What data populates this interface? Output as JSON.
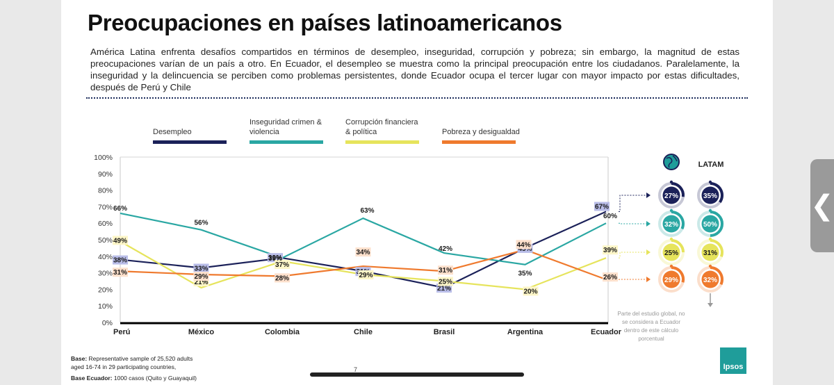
{
  "title": "Preocupaciones en países latinoamericanos",
  "description": "América Latina enfrenta desafíos compartidos en términos de desempleo, inseguridad, corrupción y pobreza; sin embargo, la magnitud de estas preocupaciones varían de un país a otro. En Ecuador, el desempleo se muestra como la principal preocupación entre los ciudadanos. Paralelamente, la inseguridad y la delincuencia se perciben como problemas persistentes, donde Ecuador ocupa el tercer lugar con mayor impacto por estas dificultades, después de Perú y Chile",
  "chart_data": {
    "type": "line",
    "categories": [
      "Perú",
      "México",
      "Colombia",
      "Chile",
      "Brasil",
      "Argentina",
      "Ecuador"
    ],
    "ylim": [
      0,
      100
    ],
    "yticks": [
      "0%",
      "10%",
      "20%",
      "30%",
      "40%",
      "50%",
      "60%",
      "70%",
      "80%",
      "90%",
      "100%"
    ],
    "grid": false,
    "legend_position": "top",
    "series": [
      {
        "name": "Desempleo",
        "color": "#1b2159",
        "label_bg": "#b9bde8",
        "values": [
          38,
          33,
          39,
          31,
          21,
          45,
          67
        ],
        "labels": [
          "38%",
          "33%",
          "39%",
          "31%",
          "21%",
          "45%",
          "67%"
        ]
      },
      {
        "name": "Inseguridad crimen & violencia",
        "color": "#2aa7a3",
        "label_bg": "",
        "values": [
          66,
          56,
          39,
          63,
          42,
          35,
          60
        ],
        "labels": [
          "66%",
          "56%",
          "",
          "63%",
          "42%",
          "35%",
          "60%"
        ]
      },
      {
        "name": "Corrupción financiera & política",
        "color": "#e6e45c",
        "label_bg": "#fdf6c8",
        "values": [
          49,
          21,
          37,
          29,
          25,
          20,
          39
        ],
        "labels": [
          "49%",
          "21%",
          "37%",
          "29%",
          "25%",
          "20%",
          "39%"
        ]
      },
      {
        "name": "Pobreza y desigualdad",
        "color": "#ef7a2e",
        "label_bg": "#fde0cc",
        "values": [
          31,
          29,
          28,
          34,
          31,
          44,
          26
        ],
        "labels": [
          "31%",
          "29%",
          "28%",
          "34%",
          "31%",
          "44%",
          "26%"
        ]
      }
    ],
    "extra_labels": [
      "39%"
    ],
    "comparison": {
      "header_latam": "LATAM",
      "global": [
        {
          "label": "27%",
          "value": 27,
          "color": "#1b2159"
        },
        {
          "label": "32%",
          "value": 32,
          "color": "#2aa7a3"
        },
        {
          "label": "25%",
          "value": 25,
          "color": "#e6e45c"
        },
        {
          "label": "29%",
          "value": 29,
          "color": "#ef7a2e"
        }
      ],
      "latam": [
        {
          "label": "35%",
          "value": 35,
          "color": "#1b2159"
        },
        {
          "label": "50%",
          "value": 50,
          "color": "#2aa7a3"
        },
        {
          "label": "31%",
          "value": 31,
          "color": "#e6e45c"
        },
        {
          "label": "32%",
          "value": 32,
          "color": "#ef7a2e"
        }
      ],
      "note": "Parte del estudio global, no se considera a Ecuador dentro de este cálculo porcentual"
    }
  },
  "footer": {
    "base_label": "Base:",
    "base_text": "Representative sample of 25,520 adults aged 16-74 in 29 participating countries,",
    "base_ecuador_label": "Base Ecuador:",
    "base_ecuador_text": "1000 casos (Quito y Guayaquil)",
    "page_number": "7",
    "logo": "Ipsos"
  }
}
